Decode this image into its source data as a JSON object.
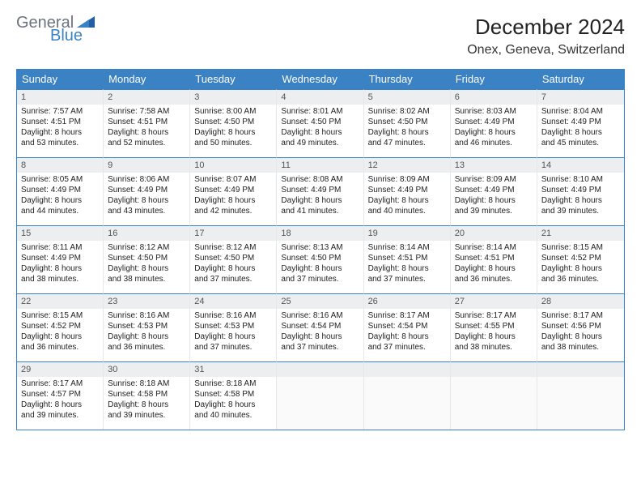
{
  "logo": {
    "line1": "General",
    "line2": "Blue"
  },
  "title": "December 2024",
  "location": "Onex, Geneva, Switzerland",
  "colors": {
    "header_bg": "#3b82c4",
    "header_text": "#ffffff",
    "daynum_bg": "#eceef0",
    "cell_border": "#3b82c4",
    "text": "#222222"
  },
  "layout": {
    "cols": 7,
    "rows": 5,
    "cell_min_h": 84,
    "fontsize_body": 10
  },
  "weekdays": [
    "Sunday",
    "Monday",
    "Tuesday",
    "Wednesday",
    "Thursday",
    "Friday",
    "Saturday"
  ],
  "days": [
    {
      "n": "1",
      "sunrise": "Sunrise: 7:57 AM",
      "sunset": "Sunset: 4:51 PM",
      "day1": "Daylight: 8 hours",
      "day2": "and 53 minutes."
    },
    {
      "n": "2",
      "sunrise": "Sunrise: 7:58 AM",
      "sunset": "Sunset: 4:51 PM",
      "day1": "Daylight: 8 hours",
      "day2": "and 52 minutes."
    },
    {
      "n": "3",
      "sunrise": "Sunrise: 8:00 AM",
      "sunset": "Sunset: 4:50 PM",
      "day1": "Daylight: 8 hours",
      "day2": "and 50 minutes."
    },
    {
      "n": "4",
      "sunrise": "Sunrise: 8:01 AM",
      "sunset": "Sunset: 4:50 PM",
      "day1": "Daylight: 8 hours",
      "day2": "and 49 minutes."
    },
    {
      "n": "5",
      "sunrise": "Sunrise: 8:02 AM",
      "sunset": "Sunset: 4:50 PM",
      "day1": "Daylight: 8 hours",
      "day2": "and 47 minutes."
    },
    {
      "n": "6",
      "sunrise": "Sunrise: 8:03 AM",
      "sunset": "Sunset: 4:49 PM",
      "day1": "Daylight: 8 hours",
      "day2": "and 46 minutes."
    },
    {
      "n": "7",
      "sunrise": "Sunrise: 8:04 AM",
      "sunset": "Sunset: 4:49 PM",
      "day1": "Daylight: 8 hours",
      "day2": "and 45 minutes."
    },
    {
      "n": "8",
      "sunrise": "Sunrise: 8:05 AM",
      "sunset": "Sunset: 4:49 PM",
      "day1": "Daylight: 8 hours",
      "day2": "and 44 minutes."
    },
    {
      "n": "9",
      "sunrise": "Sunrise: 8:06 AM",
      "sunset": "Sunset: 4:49 PM",
      "day1": "Daylight: 8 hours",
      "day2": "and 43 minutes."
    },
    {
      "n": "10",
      "sunrise": "Sunrise: 8:07 AM",
      "sunset": "Sunset: 4:49 PM",
      "day1": "Daylight: 8 hours",
      "day2": "and 42 minutes."
    },
    {
      "n": "11",
      "sunrise": "Sunrise: 8:08 AM",
      "sunset": "Sunset: 4:49 PM",
      "day1": "Daylight: 8 hours",
      "day2": "and 41 minutes."
    },
    {
      "n": "12",
      "sunrise": "Sunrise: 8:09 AM",
      "sunset": "Sunset: 4:49 PM",
      "day1": "Daylight: 8 hours",
      "day2": "and 40 minutes."
    },
    {
      "n": "13",
      "sunrise": "Sunrise: 8:09 AM",
      "sunset": "Sunset: 4:49 PM",
      "day1": "Daylight: 8 hours",
      "day2": "and 39 minutes."
    },
    {
      "n": "14",
      "sunrise": "Sunrise: 8:10 AM",
      "sunset": "Sunset: 4:49 PM",
      "day1": "Daylight: 8 hours",
      "day2": "and 39 minutes."
    },
    {
      "n": "15",
      "sunrise": "Sunrise: 8:11 AM",
      "sunset": "Sunset: 4:49 PM",
      "day1": "Daylight: 8 hours",
      "day2": "and 38 minutes."
    },
    {
      "n": "16",
      "sunrise": "Sunrise: 8:12 AM",
      "sunset": "Sunset: 4:50 PM",
      "day1": "Daylight: 8 hours",
      "day2": "and 38 minutes."
    },
    {
      "n": "17",
      "sunrise": "Sunrise: 8:12 AM",
      "sunset": "Sunset: 4:50 PM",
      "day1": "Daylight: 8 hours",
      "day2": "and 37 minutes."
    },
    {
      "n": "18",
      "sunrise": "Sunrise: 8:13 AM",
      "sunset": "Sunset: 4:50 PM",
      "day1": "Daylight: 8 hours",
      "day2": "and 37 minutes."
    },
    {
      "n": "19",
      "sunrise": "Sunrise: 8:14 AM",
      "sunset": "Sunset: 4:51 PM",
      "day1": "Daylight: 8 hours",
      "day2": "and 37 minutes."
    },
    {
      "n": "20",
      "sunrise": "Sunrise: 8:14 AM",
      "sunset": "Sunset: 4:51 PM",
      "day1": "Daylight: 8 hours",
      "day2": "and 36 minutes."
    },
    {
      "n": "21",
      "sunrise": "Sunrise: 8:15 AM",
      "sunset": "Sunset: 4:52 PM",
      "day1": "Daylight: 8 hours",
      "day2": "and 36 minutes."
    },
    {
      "n": "22",
      "sunrise": "Sunrise: 8:15 AM",
      "sunset": "Sunset: 4:52 PM",
      "day1": "Daylight: 8 hours",
      "day2": "and 36 minutes."
    },
    {
      "n": "23",
      "sunrise": "Sunrise: 8:16 AM",
      "sunset": "Sunset: 4:53 PM",
      "day1": "Daylight: 8 hours",
      "day2": "and 36 minutes."
    },
    {
      "n": "24",
      "sunrise": "Sunrise: 8:16 AM",
      "sunset": "Sunset: 4:53 PM",
      "day1": "Daylight: 8 hours",
      "day2": "and 37 minutes."
    },
    {
      "n": "25",
      "sunrise": "Sunrise: 8:16 AM",
      "sunset": "Sunset: 4:54 PM",
      "day1": "Daylight: 8 hours",
      "day2": "and 37 minutes."
    },
    {
      "n": "26",
      "sunrise": "Sunrise: 8:17 AM",
      "sunset": "Sunset: 4:54 PM",
      "day1": "Daylight: 8 hours",
      "day2": "and 37 minutes."
    },
    {
      "n": "27",
      "sunrise": "Sunrise: 8:17 AM",
      "sunset": "Sunset: 4:55 PM",
      "day1": "Daylight: 8 hours",
      "day2": "and 38 minutes."
    },
    {
      "n": "28",
      "sunrise": "Sunrise: 8:17 AM",
      "sunset": "Sunset: 4:56 PM",
      "day1": "Daylight: 8 hours",
      "day2": "and 38 minutes."
    },
    {
      "n": "29",
      "sunrise": "Sunrise: 8:17 AM",
      "sunset": "Sunset: 4:57 PM",
      "day1": "Daylight: 8 hours",
      "day2": "and 39 minutes."
    },
    {
      "n": "30",
      "sunrise": "Sunrise: 8:18 AM",
      "sunset": "Sunset: 4:58 PM",
      "day1": "Daylight: 8 hours",
      "day2": "and 39 minutes."
    },
    {
      "n": "31",
      "sunrise": "Sunrise: 8:18 AM",
      "sunset": "Sunset: 4:58 PM",
      "day1": "Daylight: 8 hours",
      "day2": "and 40 minutes."
    }
  ],
  "trailing_blanks": 4
}
